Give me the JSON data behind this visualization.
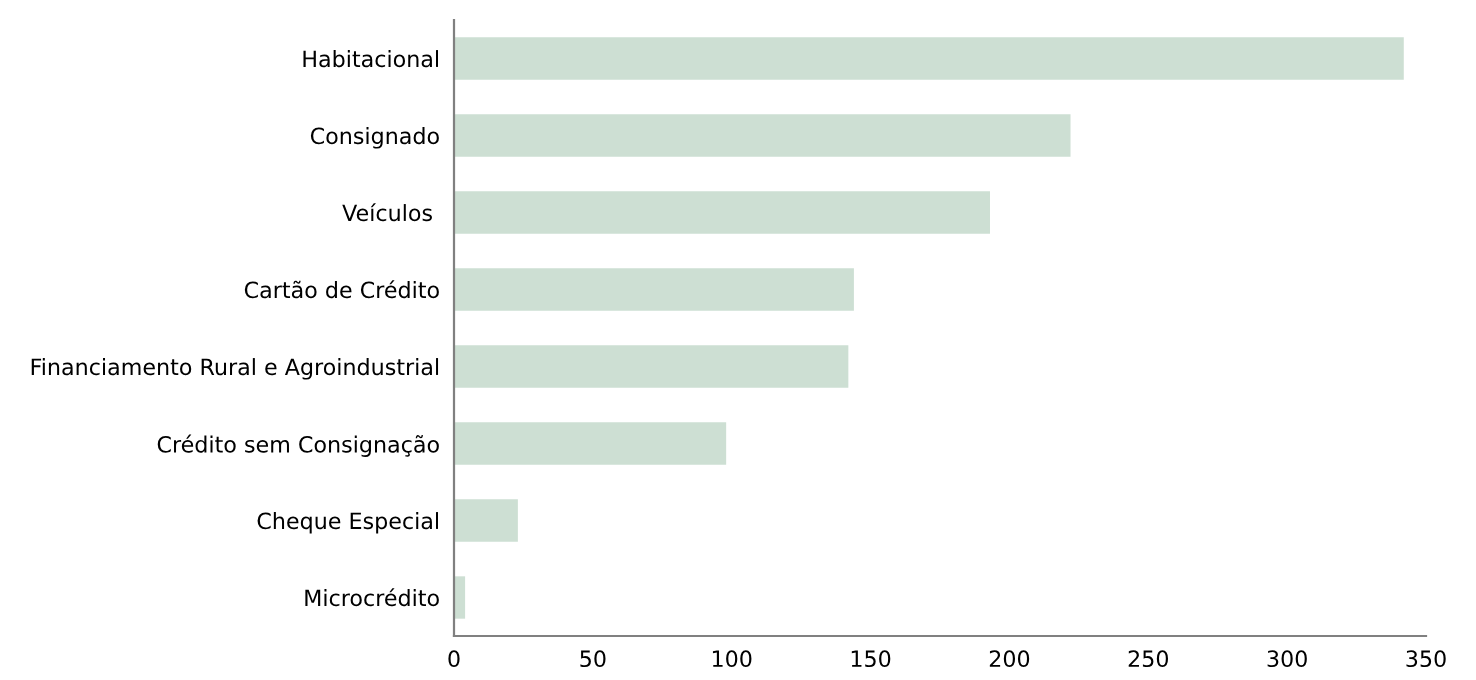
{
  "chart_data": {
    "type": "bar",
    "orientation": "horizontal",
    "categories": [
      "Habitacional",
      "Consignado",
      "Veículos ",
      "Cartão de Crédito",
      "Financiamento Rural e Agroindustrial",
      "Crédito sem Consignação",
      "Cheque Especial",
      "Microcrédito"
    ],
    "values": [
      342,
      222,
      193,
      144,
      142,
      98,
      23,
      4
    ],
    "color": "#cddfd3",
    "xlim": [
      0,
      350
    ],
    "xticks": [
      0,
      50,
      100,
      150,
      200,
      250,
      300,
      350
    ],
    "grid": false,
    "legend": false
  }
}
